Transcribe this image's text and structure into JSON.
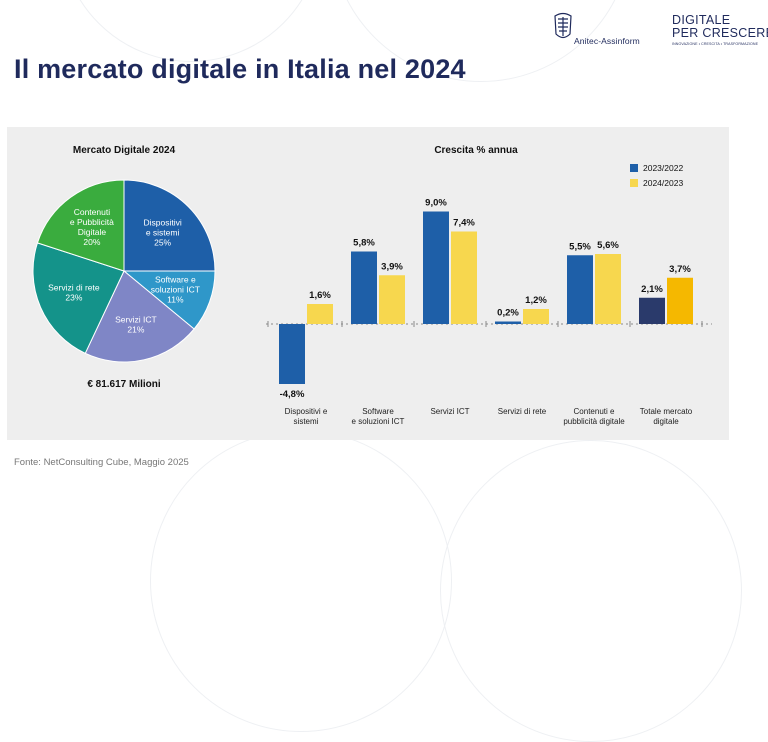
{
  "header": {
    "logo1_name": "Anitec-Assinform",
    "logo2_line1": "DIGITALE",
    "logo2_line2": "PER CRESCERE",
    "logo2_tagline": "INNOVAZIONE • CRESCITA • TRASFORMAZIONE"
  },
  "page_title": "Il mercato digitale in Italia nel 2024",
  "source": "Fonte: NetConsulting Cube, Maggio 2025",
  "colors": {
    "navy": "#1f2a5c",
    "series_2023": "#1e5fa8",
    "series_2024": "#f7d74e",
    "total_2023": "#2a3a6b",
    "total_2024": "#f5b800"
  },
  "chart_data": [
    {
      "type": "pie",
      "title": "Mercato Digitale 2024",
      "total_label": "€ 81.617 Milioni",
      "slices": [
        {
          "label": "Dispositivi e sistemi",
          "lines": [
            "Dispositivi",
            "e sistemi"
          ],
          "pct_label": "25%",
          "value": 25,
          "color": "#1e5fa8"
        },
        {
          "label": "Software e soluzioni ICT",
          "lines": [
            "Software e",
            "soluzioni ICT"
          ],
          "pct_label": "11%",
          "value": 11,
          "color": "#2f97c9"
        },
        {
          "label": "Servizi ICT",
          "lines": [
            "Servizi ICT"
          ],
          "pct_label": "21%",
          "value": 21,
          "color": "#7f86c6"
        },
        {
          "label": "Servizi di rete",
          "lines": [
            "Servizi di rete"
          ],
          "pct_label": "23%",
          "value": 23,
          "color": "#14938a"
        },
        {
          "label": "Contenuti e Pubblicità Digitale",
          "lines": [
            "Contenuti",
            "e Pubblicità",
            "Digitale"
          ],
          "pct_label": "20%",
          "value": 20,
          "color": "#3aac3e"
        }
      ]
    },
    {
      "type": "bar",
      "title": "Crescita % annua",
      "categories": [
        [
          "Dispositivi e",
          "sistemi"
        ],
        [
          "Software",
          "e soluzioni ICT"
        ],
        [
          "Servizi ICT"
        ],
        [
          "Servizi di rete"
        ],
        [
          "Contenuti e",
          "pubblicità digitale"
        ],
        [
          "Totale mercato",
          "digitale"
        ]
      ],
      "series": [
        {
          "name": "2023/2022",
          "values": [
            -4.8,
            5.8,
            9.0,
            0.2,
            5.5,
            2.1
          ],
          "labels": [
            "-4,8%",
            "5,8%",
            "9,0%",
            "0,2%",
            "5,5%",
            "2,1%"
          ]
        },
        {
          "name": "2024/2023",
          "values": [
            1.6,
            3.9,
            7.4,
            1.2,
            5.6,
            3.7
          ],
          "labels": [
            "1,6%",
            "3,9%",
            "7,4%",
            "1,2%",
            "5,6%",
            "3,7%"
          ]
        }
      ]
    }
  ]
}
